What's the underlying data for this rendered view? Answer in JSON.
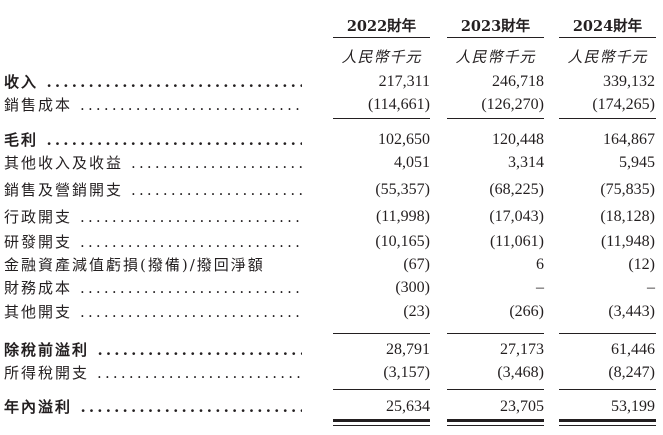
{
  "columns": [
    {
      "year": "2022財年",
      "unit": "人民幣千元"
    },
    {
      "year": "2023財年",
      "unit": "人民幣千元"
    },
    {
      "year": "2024財年",
      "unit": "人民幣千元"
    }
  ],
  "rows": [
    {
      "label": "收入",
      "bold": true,
      "values": [
        "217,311",
        "246,718",
        "339,132"
      ]
    },
    {
      "label": "銷售成本",
      "bold": false,
      "values": [
        "(114,661)",
        "(126,270)",
        "(174,265)"
      ]
    },
    {
      "label": "毛利",
      "bold": true,
      "values": [
        "102,650",
        "120,448",
        "164,867"
      ]
    },
    {
      "label": "其他收入及收益",
      "bold": false,
      "values": [
        "4,051",
        "3,314",
        "5,945"
      ]
    },
    {
      "label": "銷售及營銷開支",
      "bold": false,
      "values": [
        "(55,357)",
        "(68,225)",
        "(75,835)"
      ]
    },
    {
      "label": "行政開支",
      "bold": false,
      "values": [
        "(11,998)",
        "(17,043)",
        "(18,128)"
      ]
    },
    {
      "label": "研發開支",
      "bold": false,
      "values": [
        "(10,165)",
        "(11,061)",
        "(11,948)"
      ]
    },
    {
      "label": "金融資產減值虧損(撥備)/撥回淨額",
      "bold": false,
      "nodots": true,
      "values": [
        "(67)",
        "6",
        "(12)"
      ]
    },
    {
      "label": "財務成本",
      "bold": false,
      "values": [
        "(300)",
        "–",
        "–"
      ]
    },
    {
      "label": "其他開支",
      "bold": false,
      "values": [
        "(23)",
        "(266)",
        "(3,443)"
      ]
    },
    {
      "label": "除稅前溢利",
      "bold": true,
      "values": [
        "28,791",
        "27,173",
        "61,446"
      ]
    },
    {
      "label": "所得稅開支",
      "bold": false,
      "values": [
        "(3,157)",
        "(3,468)",
        "(8,247)"
      ]
    },
    {
      "label": "年內溢利",
      "bold": true,
      "values": [
        "25,634",
        "23,705",
        "53,199"
      ]
    }
  ]
}
